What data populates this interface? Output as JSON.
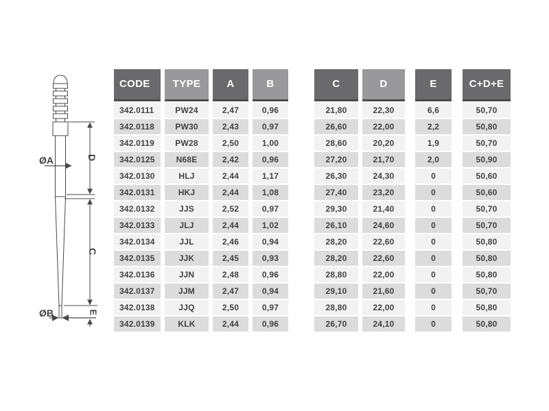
{
  "drawing": {
    "labels": {
      "dia_a": "ØA",
      "dia_b": "ØB",
      "dim_d": "D",
      "dim_c": "C",
      "dim_e": "E"
    }
  },
  "table": {
    "columns": [
      {
        "key": "code",
        "label": "CODE",
        "tone": "dark",
        "align": "left"
      },
      {
        "key": "type",
        "label": "TYPE",
        "tone": "light",
        "align": "center"
      },
      {
        "key": "a",
        "label": "A",
        "tone": "dark",
        "align": "center"
      },
      {
        "key": "b",
        "label": "B",
        "tone": "light",
        "align": "center"
      },
      {
        "key": "c",
        "label": "C",
        "tone": "dark",
        "align": "center"
      },
      {
        "key": "d",
        "label": "D",
        "tone": "light",
        "align": "center"
      },
      {
        "key": "e",
        "label": "E",
        "tone": "dark",
        "align": "center"
      },
      {
        "key": "sum",
        "label": "C+D+E",
        "tone": "dark",
        "align": "center"
      }
    ],
    "rows": [
      {
        "code": "342.0111",
        "type": "PW24",
        "a": "2,47",
        "b": "0,96",
        "c": "21,80",
        "d": "22,30",
        "e": "6,6",
        "sum": "50,70"
      },
      {
        "code": "342.0118",
        "type": "PW30",
        "a": "2,43",
        "b": "0,97",
        "c": "26,60",
        "d": "22,00",
        "e": "2,2",
        "sum": "50,80"
      },
      {
        "code": "342.0119",
        "type": "PW28",
        "a": "2,50",
        "b": "1,00",
        "c": "28,60",
        "d": "20,20",
        "e": "1,9",
        "sum": "50,70"
      },
      {
        "code": "342.0125",
        "type": "N68E",
        "a": "2,42",
        "b": "0,96",
        "c": "27,20",
        "d": "21,70",
        "e": "2,0",
        "sum": "50,90"
      },
      {
        "code": "342.0130",
        "type": "HLJ",
        "a": "2,44",
        "b": "1,17",
        "c": "26,30",
        "d": "24,30",
        "e": "0",
        "sum": "50,60"
      },
      {
        "code": "342.0131",
        "type": "HKJ",
        "a": "2,44",
        "b": "1,08",
        "c": "27,40",
        "d": "23,20",
        "e": "0",
        "sum": "50,60"
      },
      {
        "code": "342.0132",
        "type": "JJS",
        "a": "2,52",
        "b": "0,97",
        "c": "29,30",
        "d": "21,40",
        "e": "0",
        "sum": "50,70"
      },
      {
        "code": "342.0133",
        "type": "JLJ",
        "a": "2,44",
        "b": "1,02",
        "c": "26,10",
        "d": "24,60",
        "e": "0",
        "sum": "50,70"
      },
      {
        "code": "342.0134",
        "type": "JJL",
        "a": "2,46",
        "b": "0,94",
        "c": "28,20",
        "d": "22,60",
        "e": "0",
        "sum": "50,80"
      },
      {
        "code": "342.0135",
        "type": "JJK",
        "a": "2,45",
        "b": "0,93",
        "c": "28,20",
        "d": "22,60",
        "e": "0",
        "sum": "50,80"
      },
      {
        "code": "342.0136",
        "type": "JJN",
        "a": "2,48",
        "b": "0,96",
        "c": "28,80",
        "d": "22,00",
        "e": "0",
        "sum": "50,80"
      },
      {
        "code": "342.0137",
        "type": "JJM",
        "a": "2,47",
        "b": "0,94",
        "c": "29,10",
        "d": "21,60",
        "e": "0",
        "sum": "50,70"
      },
      {
        "code": "342.0138",
        "type": "JJQ",
        "a": "2,50",
        "b": "0,97",
        "c": "28,80",
        "d": "22,00",
        "e": "0",
        "sum": "50,80"
      },
      {
        "code": "342.0139",
        "type": "KLK",
        "a": "2,44",
        "b": "0,96",
        "c": "26,70",
        "d": "24,10",
        "e": "0",
        "sum": "50,80"
      }
    ]
  },
  "colors": {
    "header_dark": "#6a6a6c",
    "header_light": "#99999b",
    "header_edge": "#4b4b4d",
    "row_light": "#f2f2f2",
    "row_shaded": "#dcdcdd",
    "cell_text": "#414144",
    "header_text": "#ffffff",
    "line": "#47474a"
  }
}
